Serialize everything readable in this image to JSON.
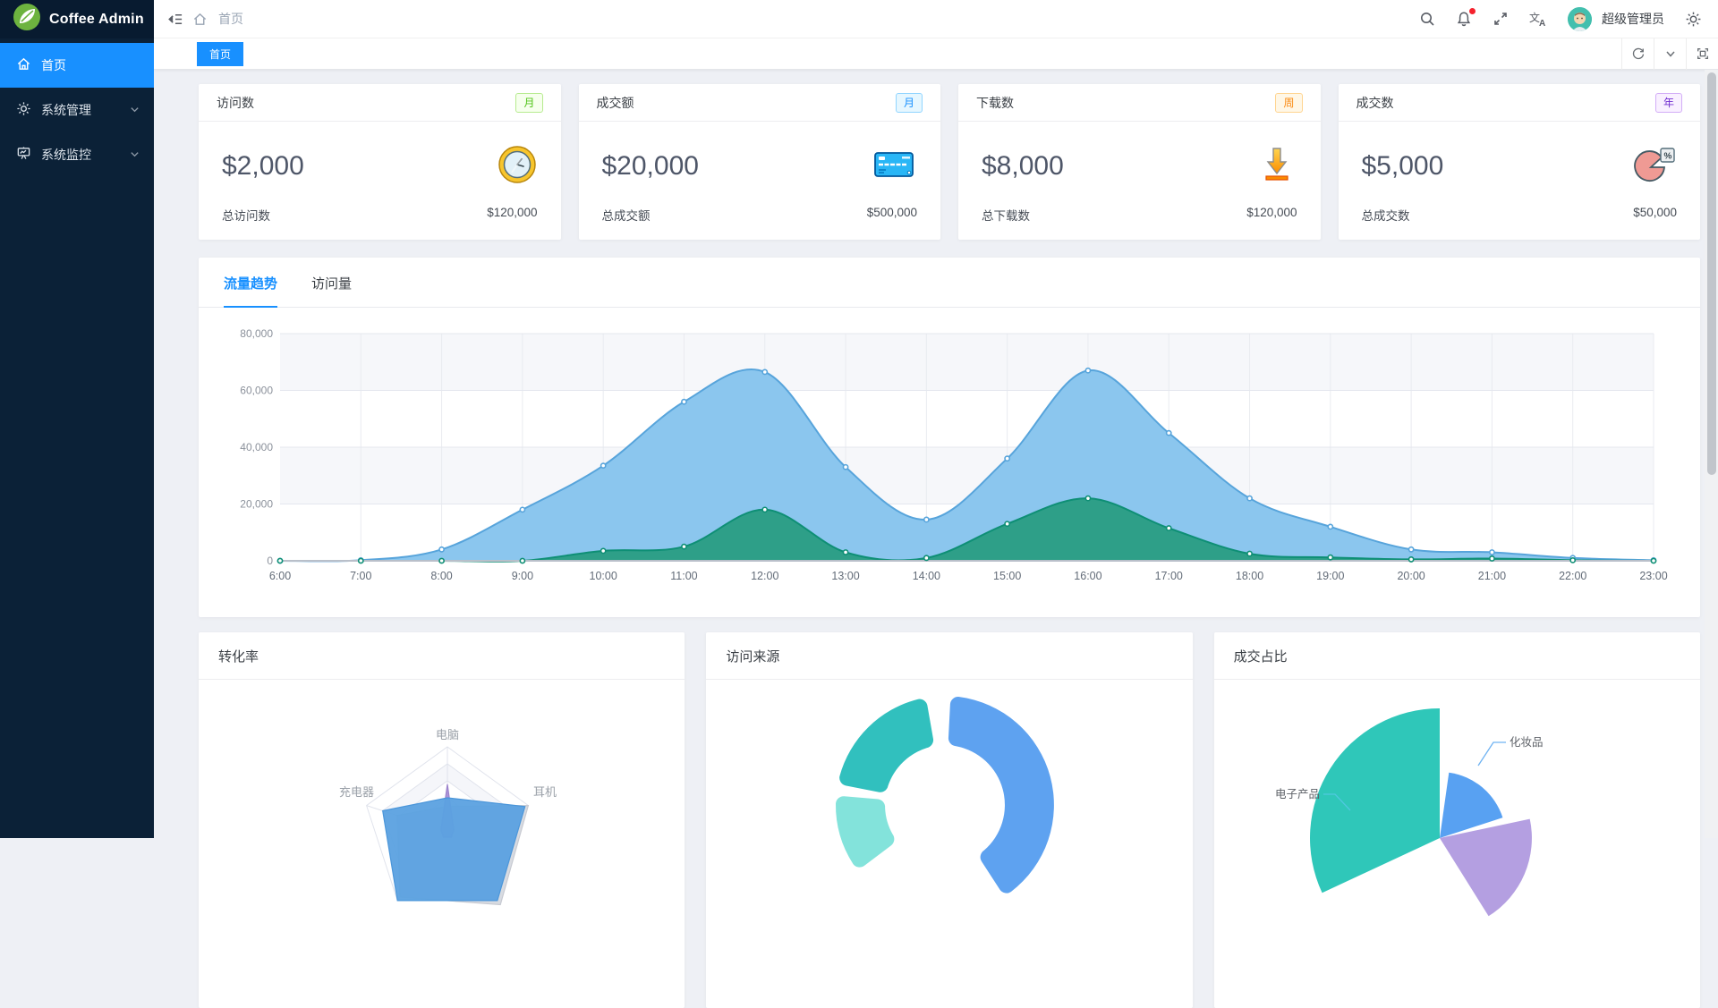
{
  "app": {
    "title": "Coffee Admin"
  },
  "sidebar": {
    "items": [
      {
        "label": "首页",
        "icon": "home-icon",
        "active": true,
        "expandable": false
      },
      {
        "label": "系统管理",
        "icon": "gear-icon",
        "active": false,
        "expandable": true
      },
      {
        "label": "系统监控",
        "icon": "monitor-icon",
        "active": false,
        "expandable": true
      }
    ]
  },
  "topbar": {
    "breadcrumb": "首页",
    "icons": [
      "fold-icon",
      "home-icon",
      "search-icon",
      "bell-icon",
      "fullscreen-icon",
      "translate-icon",
      "settings-icon"
    ],
    "notification_dot": true,
    "username": "超级管理员"
  },
  "tabbar": {
    "active_tab": "首页",
    "controls": [
      "refresh-icon",
      "chevron-down-icon",
      "maximize-icon"
    ]
  },
  "stat_cards": [
    {
      "title": "访问数",
      "badge": "月",
      "badge_color": "green",
      "value": "$2,000",
      "icon": "clock-icon",
      "footer_label": "总访问数",
      "footer_value": "$120,000"
    },
    {
      "title": "成交额",
      "badge": "月",
      "badge_color": "blue",
      "value": "$20,000",
      "icon": "credit-card-icon",
      "footer_label": "总成交额",
      "footer_value": "$500,000"
    },
    {
      "title": "下载数",
      "badge": "周",
      "badge_color": "orange",
      "value": "$8,000",
      "icon": "download-icon",
      "footer_label": "总下载数",
      "footer_value": "$120,000"
    },
    {
      "title": "成交数",
      "badge": "年",
      "badge_color": "purple",
      "value": "$5,000",
      "icon": "pie-icon",
      "footer_label": "总成交数",
      "footer_value": "$50,000"
    }
  ],
  "trend": {
    "tabs": [
      "流量趋势",
      "访问量"
    ],
    "active_tab": "流量趋势"
  },
  "bottom_cards": [
    {
      "title": "转化率"
    },
    {
      "title": "访问来源"
    },
    {
      "title": "成交占比"
    }
  ],
  "chart_data": [
    {
      "type": "area",
      "title": "流量趋势",
      "x": [
        "6:00",
        "7:00",
        "8:00",
        "9:00",
        "10:00",
        "11:00",
        "12:00",
        "13:00",
        "14:00",
        "15:00",
        "16:00",
        "17:00",
        "18:00",
        "19:00",
        "20:00",
        "21:00",
        "22:00",
        "23:00"
      ],
      "ylim": [
        0,
        80000
      ],
      "yticks": [
        "0",
        "20,000",
        "40,000",
        "60,000",
        "80,000"
      ],
      "grid": true,
      "legend_position": "none",
      "series": [
        {
          "name": "page-views",
          "color": "#57A4DB",
          "fill": "#8BC6EE",
          "values": [
            0,
            200,
            4000,
            18000,
            33500,
            56000,
            66500,
            33000,
            14500,
            36000,
            67000,
            45000,
            22000,
            12000,
            4000,
            3000,
            1000,
            200
          ]
        },
        {
          "name": "unique-visits",
          "color": "#0E8F75",
          "fill": "#2E9F88",
          "values": [
            0,
            0,
            0,
            0,
            3500,
            5000,
            18000,
            3000,
            1000,
            13000,
            22000,
            11500,
            2500,
            1200,
            500,
            800,
            200,
            0
          ]
        }
      ]
    },
    {
      "type": "radar",
      "title": "转化率",
      "indicators": [
        {
          "label": "电脑"
        },
        {
          "label": "耳机"
        },
        {
          "label": ""
        },
        {
          "label": ""
        },
        {
          "label": "充电器"
        }
      ],
      "max": 1.0,
      "series": [
        {
          "name": "shadow",
          "fill": "#d6d9df",
          "stroke": "#c7cad2",
          "values": [
            0.3,
            1.0,
            1.06,
            0.95,
            0.62
          ]
        },
        {
          "name": "purple",
          "fill": "#a98fd6",
          "stroke": "#9b82cc",
          "values": [
            0.56,
            0.08,
            0.08,
            0.08,
            0.08
          ]
        },
        {
          "name": "blue",
          "fill": "#5BA1E0",
          "stroke": "#4b96da",
          "values": [
            0.4,
            0.96,
            1.0,
            1.0,
            0.8
          ]
        }
      ]
    },
    {
      "type": "donut",
      "title": "访问来源",
      "segments": [
        {
          "name": "segment-blue",
          "color": "#5EA2F0",
          "start_deg": 3,
          "end_deg": 147
        },
        {
          "name": "segment-teal",
          "color": "#31C0BE",
          "start_deg": -79,
          "end_deg": -10
        },
        {
          "name": "segment-cyan",
          "color": "#83E3DB",
          "start_deg": -127,
          "end_deg": -85
        }
      ]
    },
    {
      "type": "rose-pie",
      "title": "成交占比",
      "slices": [
        {
          "label": "电子产品",
          "color": "#2FC7B9",
          "radius": 145,
          "start_deg": 245,
          "end_deg": 360
        },
        {
          "label": "化妆品",
          "color": "#58A1F2",
          "radius": 74,
          "start_deg": 8,
          "end_deg": 72
        },
        {
          "label": "",
          "color": "#B49FE1",
          "radius": 103,
          "start_deg": 78,
          "end_deg": 148
        }
      ]
    }
  ]
}
